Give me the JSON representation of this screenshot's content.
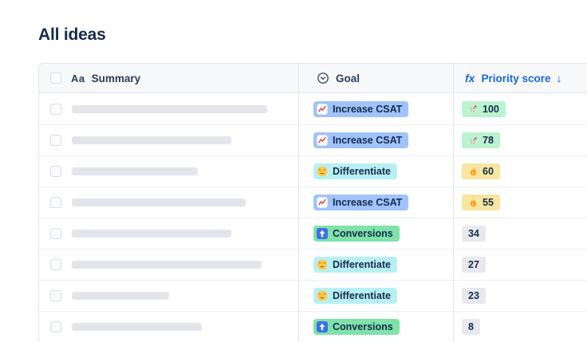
{
  "page": {
    "title": "All ideas"
  },
  "table": {
    "columns": [
      {
        "label": "Summary",
        "icon": "text-field-icon"
      },
      {
        "label": "Goal",
        "icon": "select-field-icon"
      },
      {
        "label": "Priority score",
        "icon": "formula-icon",
        "sort": "descending"
      }
    ],
    "header": {
      "summary_icon": "Aa",
      "formula_icon": "fx",
      "sort_arrow": "↓"
    },
    "rows": [
      {
        "summary_bar_width": 245,
        "goal": {
          "label": "Increase CSAT",
          "icon": "chart-increasing-icon",
          "type": "csat"
        },
        "score": {
          "value": "100",
          "icon": "rocket-icon",
          "tier": "high"
        }
      },
      {
        "summary_bar_width": 200,
        "goal": {
          "label": "Increase CSAT",
          "icon": "chart-increasing-icon",
          "type": "csat"
        },
        "score": {
          "value": "78",
          "icon": "rocket-icon",
          "tier": "high"
        }
      },
      {
        "summary_bar_width": 158,
        "goal": {
          "label": "Differentiate",
          "icon": "star-struck-icon",
          "type": "differentiate"
        },
        "score": {
          "value": "60",
          "icon": "fire-icon",
          "tier": "medium"
        }
      },
      {
        "summary_bar_width": 218,
        "goal": {
          "label": "Increase CSAT",
          "icon": "chart-increasing-icon",
          "type": "csat"
        },
        "score": {
          "value": "55",
          "icon": "fire-icon",
          "tier": "medium"
        }
      },
      {
        "summary_bar_width": 200,
        "goal": {
          "label": "Conversions",
          "icon": "arrow-up-icon",
          "type": "conversions"
        },
        "score": {
          "value": "34",
          "icon": "",
          "tier": "low"
        }
      },
      {
        "summary_bar_width": 238,
        "goal": {
          "label": "Differentiate",
          "icon": "star-struck-icon",
          "type": "differentiate"
        },
        "score": {
          "value": "27",
          "icon": "",
          "tier": "low"
        }
      },
      {
        "summary_bar_width": 122,
        "goal": {
          "label": "Differentiate",
          "icon": "star-struck-icon",
          "type": "differentiate"
        },
        "score": {
          "value": "23",
          "icon": "",
          "tier": "low"
        }
      },
      {
        "summary_bar_width": 163,
        "goal": {
          "label": "Conversions",
          "icon": "arrow-up-icon",
          "type": "conversions"
        },
        "score": {
          "value": "8",
          "icon": "",
          "tier": "low"
        }
      }
    ]
  },
  "colors": {
    "accent_blue": "#1868DB",
    "text_dark": "#172B4D",
    "header_text": "#2E3E5C",
    "table_border": "#E3E5E9",
    "row_border": "#EEEFF2",
    "header_bg": "#F7F8F9",
    "placeholder_bar": "#E3E5EA",
    "goal_csat_bg": "#9FC3FA",
    "goal_differentiate_bg": "#B7F0F4",
    "goal_conversions_bg": "#7EE2A9",
    "score_high_bg": "#BBF3CF",
    "score_medium_bg": "#F8E6A0",
    "score_low_bg": "#E7E9EE"
  }
}
